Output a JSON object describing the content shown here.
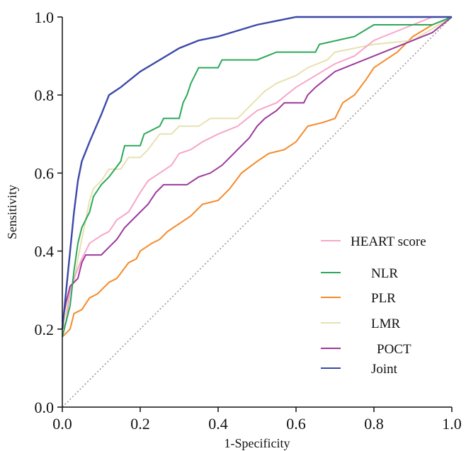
{
  "chart_data": {
    "type": "line",
    "xlabel": "1-Specificity",
    "ylabel": "Sensitivity",
    "xlim": [
      0,
      1
    ],
    "ylim": [
      0,
      1
    ],
    "x_ticks": [
      "0.0",
      "0.2",
      "0.4",
      "0.6",
      "0.8",
      "1.0"
    ],
    "y_ticks": [
      "0.0",
      "0.2",
      "0.4",
      "0.6",
      "0.8",
      "1.0"
    ],
    "grid": false,
    "legend_position": "bottom-right",
    "reference_line": {
      "style": "dotted",
      "color": "#9a9a9a",
      "points": [
        [
          0,
          0
        ],
        [
          1,
          1
        ]
      ]
    },
    "series": [
      {
        "name": "HEART score",
        "color": "#f7a6c9",
        "points": [
          [
            0,
            0.2
          ],
          [
            0.01,
            0.22
          ],
          [
            0.02,
            0.3
          ],
          [
            0.03,
            0.33
          ],
          [
            0.05,
            0.38
          ],
          [
            0.07,
            0.42
          ],
          [
            0.1,
            0.44
          ],
          [
            0.12,
            0.45
          ],
          [
            0.14,
            0.48
          ],
          [
            0.17,
            0.5
          ],
          [
            0.2,
            0.55
          ],
          [
            0.22,
            0.58
          ],
          [
            0.25,
            0.6
          ],
          [
            0.28,
            0.62
          ],
          [
            0.3,
            0.65
          ],
          [
            0.33,
            0.66
          ],
          [
            0.36,
            0.68
          ],
          [
            0.4,
            0.7
          ],
          [
            0.45,
            0.72
          ],
          [
            0.5,
            0.76
          ],
          [
            0.55,
            0.78
          ],
          [
            0.6,
            0.82
          ],
          [
            0.65,
            0.85
          ],
          [
            0.7,
            0.88
          ],
          [
            0.75,
            0.9
          ],
          [
            0.8,
            0.94
          ],
          [
            0.85,
            0.96
          ],
          [
            0.9,
            0.98
          ],
          [
            0.95,
            1.0
          ],
          [
            1.0,
            1.0
          ]
        ]
      },
      {
        "name": "NLR",
        "color": "#2ca85a",
        "points": [
          [
            0,
            0.18
          ],
          [
            0.01,
            0.22
          ],
          [
            0.02,
            0.26
          ],
          [
            0.03,
            0.35
          ],
          [
            0.04,
            0.42
          ],
          [
            0.05,
            0.46
          ],
          [
            0.07,
            0.5
          ],
          [
            0.08,
            0.54
          ],
          [
            0.1,
            0.57
          ],
          [
            0.12,
            0.59
          ],
          [
            0.15,
            0.63
          ],
          [
            0.16,
            0.67
          ],
          [
            0.2,
            0.67
          ],
          [
            0.21,
            0.7
          ],
          [
            0.25,
            0.72
          ],
          [
            0.26,
            0.74
          ],
          [
            0.3,
            0.74
          ],
          [
            0.31,
            0.78
          ],
          [
            0.32,
            0.8
          ],
          [
            0.33,
            0.83
          ],
          [
            0.34,
            0.85
          ],
          [
            0.35,
            0.87
          ],
          [
            0.4,
            0.87
          ],
          [
            0.41,
            0.89
          ],
          [
            0.5,
            0.89
          ],
          [
            0.55,
            0.91
          ],
          [
            0.65,
            0.91
          ],
          [
            0.66,
            0.93
          ],
          [
            0.75,
            0.95
          ],
          [
            0.8,
            0.98
          ],
          [
            0.9,
            0.98
          ],
          [
            0.95,
            0.98
          ],
          [
            1.0,
            1.0
          ]
        ]
      },
      {
        "name": "PLR",
        "color": "#f58a2a",
        "points": [
          [
            0,
            0.18
          ],
          [
            0.02,
            0.2
          ],
          [
            0.03,
            0.24
          ],
          [
            0.05,
            0.25
          ],
          [
            0.07,
            0.28
          ],
          [
            0.09,
            0.29
          ],
          [
            0.12,
            0.32
          ],
          [
            0.14,
            0.33
          ],
          [
            0.17,
            0.37
          ],
          [
            0.19,
            0.38
          ],
          [
            0.2,
            0.4
          ],
          [
            0.23,
            0.42
          ],
          [
            0.25,
            0.43
          ],
          [
            0.27,
            0.45
          ],
          [
            0.3,
            0.47
          ],
          [
            0.33,
            0.49
          ],
          [
            0.36,
            0.52
          ],
          [
            0.4,
            0.53
          ],
          [
            0.43,
            0.56
          ],
          [
            0.46,
            0.6
          ],
          [
            0.5,
            0.63
          ],
          [
            0.53,
            0.65
          ],
          [
            0.57,
            0.66
          ],
          [
            0.6,
            0.68
          ],
          [
            0.63,
            0.72
          ],
          [
            0.67,
            0.73
          ],
          [
            0.7,
            0.74
          ],
          [
            0.72,
            0.78
          ],
          [
            0.75,
            0.8
          ],
          [
            0.78,
            0.84
          ],
          [
            0.8,
            0.87
          ],
          [
            0.83,
            0.89
          ],
          [
            0.86,
            0.91
          ],
          [
            0.9,
            0.95
          ],
          [
            0.95,
            0.98
          ],
          [
            1.0,
            1.0
          ]
        ]
      },
      {
        "name": "LMR",
        "color": "#e8e1b0",
        "points": [
          [
            0,
            0.2
          ],
          [
            0.01,
            0.25
          ],
          [
            0.02,
            0.3
          ],
          [
            0.03,
            0.32
          ],
          [
            0.04,
            0.38
          ],
          [
            0.05,
            0.43
          ],
          [
            0.06,
            0.48
          ],
          [
            0.07,
            0.53
          ],
          [
            0.08,
            0.56
          ],
          [
            0.1,
            0.58
          ],
          [
            0.12,
            0.61
          ],
          [
            0.15,
            0.61
          ],
          [
            0.17,
            0.64
          ],
          [
            0.2,
            0.64
          ],
          [
            0.22,
            0.66
          ],
          [
            0.25,
            0.7
          ],
          [
            0.28,
            0.7
          ],
          [
            0.3,
            0.72
          ],
          [
            0.35,
            0.72
          ],
          [
            0.38,
            0.74
          ],
          [
            0.45,
            0.74
          ],
          [
            0.48,
            0.77
          ],
          [
            0.5,
            0.79
          ],
          [
            0.52,
            0.81
          ],
          [
            0.55,
            0.83
          ],
          [
            0.6,
            0.85
          ],
          [
            0.63,
            0.87
          ],
          [
            0.68,
            0.89
          ],
          [
            0.7,
            0.91
          ],
          [
            0.75,
            0.92
          ],
          [
            0.8,
            0.93
          ],
          [
            0.9,
            0.94
          ],
          [
            0.95,
            0.97
          ],
          [
            1.0,
            1.0
          ]
        ]
      },
      {
        "name": "POCT",
        "color": "#9b3a9b",
        "points": [
          [
            0,
            0.22
          ],
          [
            0.01,
            0.27
          ],
          [
            0.02,
            0.31
          ],
          [
            0.04,
            0.33
          ],
          [
            0.05,
            0.37
          ],
          [
            0.06,
            0.39
          ],
          [
            0.1,
            0.39
          ],
          [
            0.12,
            0.41
          ],
          [
            0.14,
            0.43
          ],
          [
            0.16,
            0.46
          ],
          [
            0.18,
            0.48
          ],
          [
            0.2,
            0.5
          ],
          [
            0.22,
            0.52
          ],
          [
            0.24,
            0.55
          ],
          [
            0.26,
            0.57
          ],
          [
            0.32,
            0.57
          ],
          [
            0.35,
            0.59
          ],
          [
            0.38,
            0.6
          ],
          [
            0.41,
            0.62
          ],
          [
            0.43,
            0.64
          ],
          [
            0.45,
            0.66
          ],
          [
            0.48,
            0.69
          ],
          [
            0.5,
            0.72
          ],
          [
            0.52,
            0.74
          ],
          [
            0.55,
            0.76
          ],
          [
            0.57,
            0.78
          ],
          [
            0.62,
            0.78
          ],
          [
            0.63,
            0.8
          ],
          [
            0.65,
            0.82
          ],
          [
            0.7,
            0.86
          ],
          [
            0.75,
            0.88
          ],
          [
            0.8,
            0.9
          ],
          [
            0.85,
            0.92
          ],
          [
            0.9,
            0.94
          ],
          [
            0.95,
            0.96
          ],
          [
            1.0,
            1.0
          ]
        ]
      },
      {
        "name": "Joint",
        "color": "#3b49a8",
        "points": [
          [
            0,
            0.2
          ],
          [
            0.01,
            0.3
          ],
          [
            0.02,
            0.4
          ],
          [
            0.03,
            0.5
          ],
          [
            0.04,
            0.58
          ],
          [
            0.05,
            0.63
          ],
          [
            0.07,
            0.68
          ],
          [
            0.1,
            0.75
          ],
          [
            0.12,
            0.8
          ],
          [
            0.15,
            0.82
          ],
          [
            0.2,
            0.86
          ],
          [
            0.25,
            0.89
          ],
          [
            0.3,
            0.92
          ],
          [
            0.35,
            0.94
          ],
          [
            0.4,
            0.95
          ],
          [
            0.5,
            0.98
          ],
          [
            0.6,
            1.0
          ],
          [
            0.64,
            1.0
          ],
          [
            1.0,
            1.0
          ]
        ]
      }
    ]
  }
}
